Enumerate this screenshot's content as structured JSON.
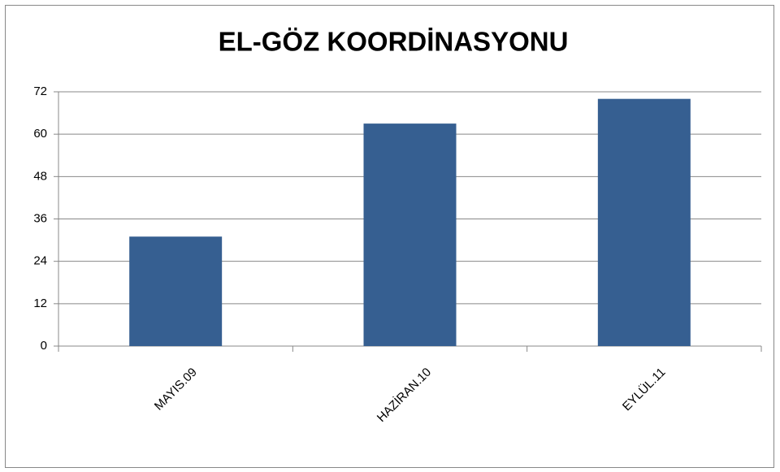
{
  "chart_data": {
    "type": "bar",
    "title": "EL-GÖZ KOORDİNASYONU",
    "categories": [
      "MAYIS.09",
      "HAZİRAN.10",
      "EYLÜL.11"
    ],
    "values": [
      31,
      63,
      70
    ],
    "color": "#365f91",
    "ylim": [
      0,
      72
    ],
    "yticks": [
      0,
      12,
      24,
      36,
      48,
      60,
      72
    ],
    "grid": true
  }
}
